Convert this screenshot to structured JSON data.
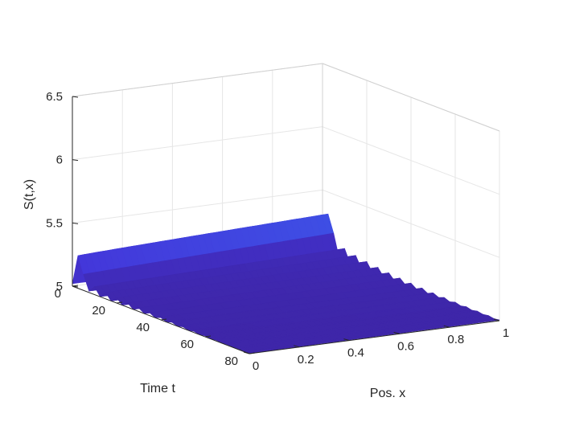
{
  "chart_data": {
    "type": "surface3d",
    "title": "",
    "xlabel": "Pos. x",
    "ylabel": "Time t",
    "zlabel": "S(t,x)",
    "xlim": [
      0,
      1
    ],
    "tlim": [
      0,
      80
    ],
    "zlim": [
      5,
      6.5
    ],
    "x_ticks": [
      "0",
      "0.2",
      "0.4",
      "0.6",
      "0.8",
      "1"
    ],
    "t_ticks": [
      "0",
      "20",
      "40",
      "60",
      "80"
    ],
    "z_ticks": [
      "5",
      "5.5",
      "6",
      "6.5"
    ],
    "colormap": [
      "#3e26a8",
      "#4435d9",
      "#3577f6",
      "#1fa6d9",
      "#19c3aa",
      "#5fcc6e",
      "#b8c23c",
      "#f7b73a",
      "#f9e817"
    ],
    "x": [
      0,
      0.025,
      0.05,
      0.075,
      0.1,
      0.125,
      0.15,
      0.175,
      0.2,
      0.225,
      0.25,
      0.275,
      0.3,
      0.325,
      0.35,
      0.375,
      0.4,
      0.425,
      0.45,
      0.475,
      0.5,
      0.525,
      0.55,
      0.575,
      0.6,
      0.625,
      0.65,
      0.675,
      0.7,
      0.725,
      0.75,
      0.775,
      0.8,
      0.825,
      0.85,
      0.875,
      0.9,
      0.925,
      0.95,
      0.975,
      1
    ],
    "t": [
      0,
      2.5,
      5,
      7.5,
      10,
      12.5,
      15,
      17.5,
      20,
      22.5,
      25,
      27.5,
      30,
      32.5,
      35,
      37.5,
      40,
      42.5,
      45,
      47.5,
      50,
      52.5,
      55,
      57.5,
      60,
      62.5,
      65,
      67.5,
      70,
      72.5,
      75,
      77.5,
      80
    ],
    "grid": true,
    "box": false
  }
}
